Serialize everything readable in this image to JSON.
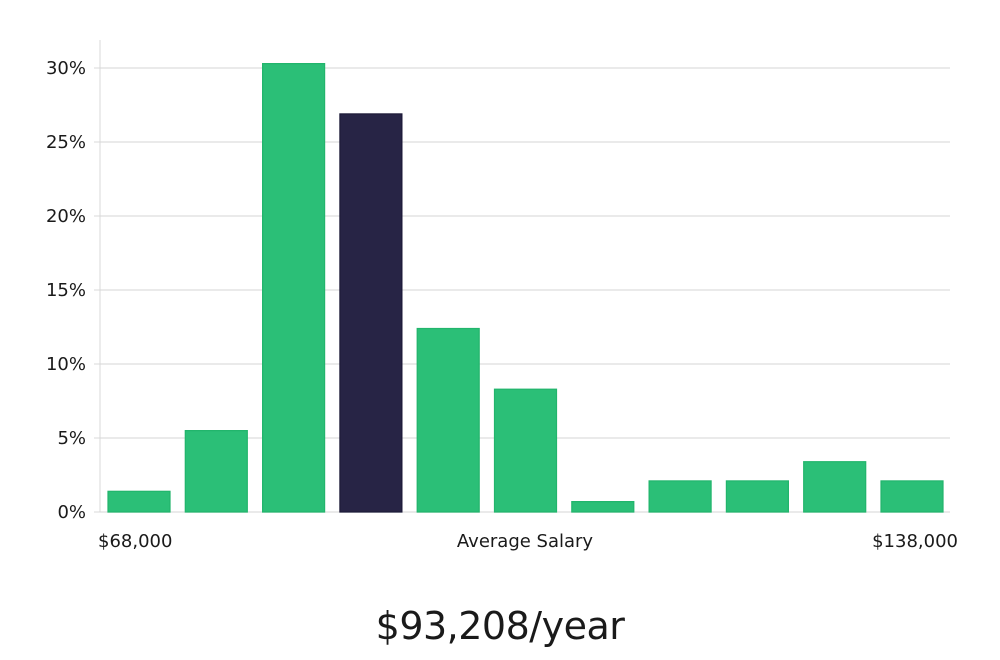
{
  "chart_data": {
    "type": "bar",
    "bins": 11,
    "values": [
      1.4,
      5.5,
      30.3,
      26.9,
      12.4,
      8.3,
      0.7,
      2.1,
      2.1,
      3.4,
      2.1
    ],
    "highlight_index": 3,
    "yticks": [
      "0%",
      "5%",
      "10%",
      "15%",
      "20%",
      "25%",
      "30%"
    ],
    "ylim": [
      0,
      32
    ],
    "x_min_label": "$68,000",
    "x_center_label": "Average Salary",
    "x_max_label": "$138,000",
    "grid": true,
    "colors": {
      "bar": "#2bbf77",
      "highlight": "#272445",
      "grid": "#e3e3e3",
      "axis": "#d8d8d8"
    }
  },
  "salary_text": "$93,208/year"
}
